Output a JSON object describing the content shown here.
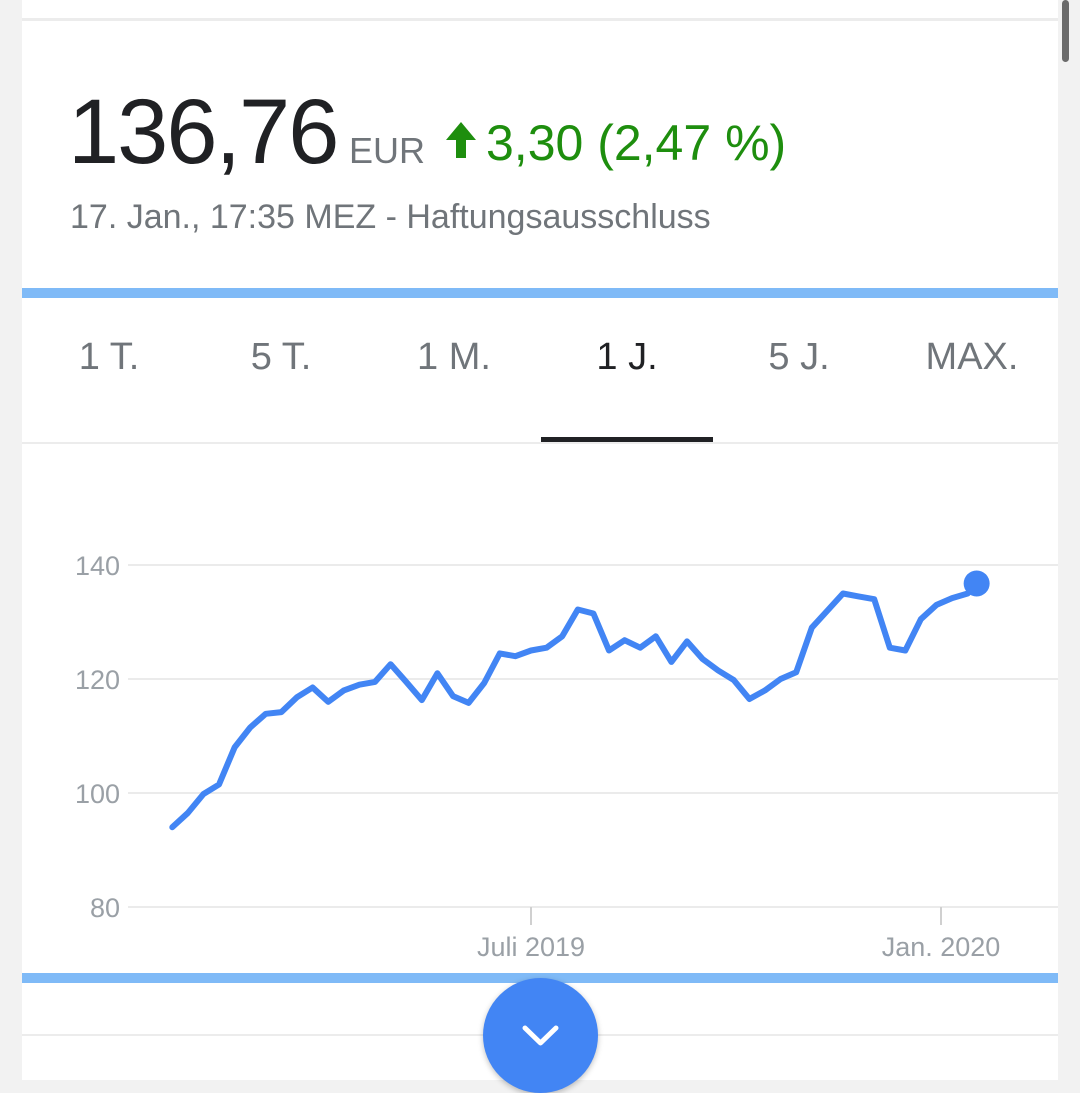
{
  "quote": {
    "price": "136,76",
    "currency": "EUR",
    "change": "3,30 (2,47 %)",
    "direction_icon": "arrow-up-icon",
    "timestamp": "17. Jan., 17:35 MEZ - Haftungsausschluss",
    "change_color": "#1e8e0e"
  },
  "tabs": [
    {
      "label": "1 T.",
      "active": false
    },
    {
      "label": "5 T.",
      "active": false
    },
    {
      "label": "1 M.",
      "active": false
    },
    {
      "label": "1 J.",
      "active": true
    },
    {
      "label": "5 J.",
      "active": false
    },
    {
      "label": "MAX.",
      "active": false
    }
  ],
  "colors": {
    "accent": "#4285f4",
    "line": "#4285f4",
    "divider_bar": "#7fbaf7"
  },
  "expand_button": {
    "icon": "chevron-down-icon"
  },
  "chart_data": {
    "type": "line",
    "title": "",
    "xlabel": "",
    "ylabel": "",
    "ylim": [
      80,
      140
    ],
    "yticks": [
      "80",
      "100",
      "120",
      "140"
    ],
    "xticks": [
      {
        "label": "Juli 2019",
        "date": "2019-07-01"
      },
      {
        "label": "Jan. 2020",
        "date": "2020-01-01"
      }
    ],
    "grid": true,
    "last_point_marker": true,
    "series": [
      {
        "x": [
          "2019-01-21",
          "2019-01-28",
          "2019-02-04",
          "2019-02-11",
          "2019-02-18",
          "2019-02-25",
          "2019-03-04",
          "2019-03-11",
          "2019-03-18",
          "2019-03-25",
          "2019-04-01",
          "2019-04-08",
          "2019-04-15",
          "2019-04-22",
          "2019-04-29",
          "2019-05-06",
          "2019-05-13",
          "2019-05-20",
          "2019-05-27",
          "2019-06-03",
          "2019-06-10",
          "2019-06-17",
          "2019-06-24",
          "2019-07-01",
          "2019-07-08",
          "2019-07-15",
          "2019-07-22",
          "2019-07-29",
          "2019-08-05",
          "2019-08-12",
          "2019-08-19",
          "2019-08-26",
          "2019-09-02",
          "2019-09-09",
          "2019-09-16",
          "2019-09-23",
          "2019-09-30",
          "2019-10-07",
          "2019-10-14",
          "2019-10-21",
          "2019-10-28",
          "2019-11-04",
          "2019-11-11",
          "2019-11-18",
          "2019-11-25",
          "2019-12-02",
          "2019-12-09",
          "2019-12-16",
          "2019-12-23",
          "2019-12-30",
          "2020-01-06",
          "2020-01-13",
          "2020-01-17"
        ],
        "y": [
          94,
          96.5,
          99.8,
          101.5,
          108,
          111.5,
          113.9,
          114.2,
          116.8,
          118.5,
          116,
          118,
          119,
          119.5,
          122.6,
          119.5,
          116.3,
          121,
          117,
          115.8,
          119.3,
          124.5,
          124,
          125,
          125.5,
          127.5,
          132.2,
          131.5,
          125,
          126.8,
          125.5,
          127.5,
          123,
          126.6,
          123.5,
          121.5,
          119.8,
          116.5,
          118,
          120,
          121.2,
          129,
          132,
          135,
          134.5,
          134,
          125.5,
          125,
          130.5,
          133,
          134.2,
          135,
          136.76
        ]
      }
    ]
  }
}
